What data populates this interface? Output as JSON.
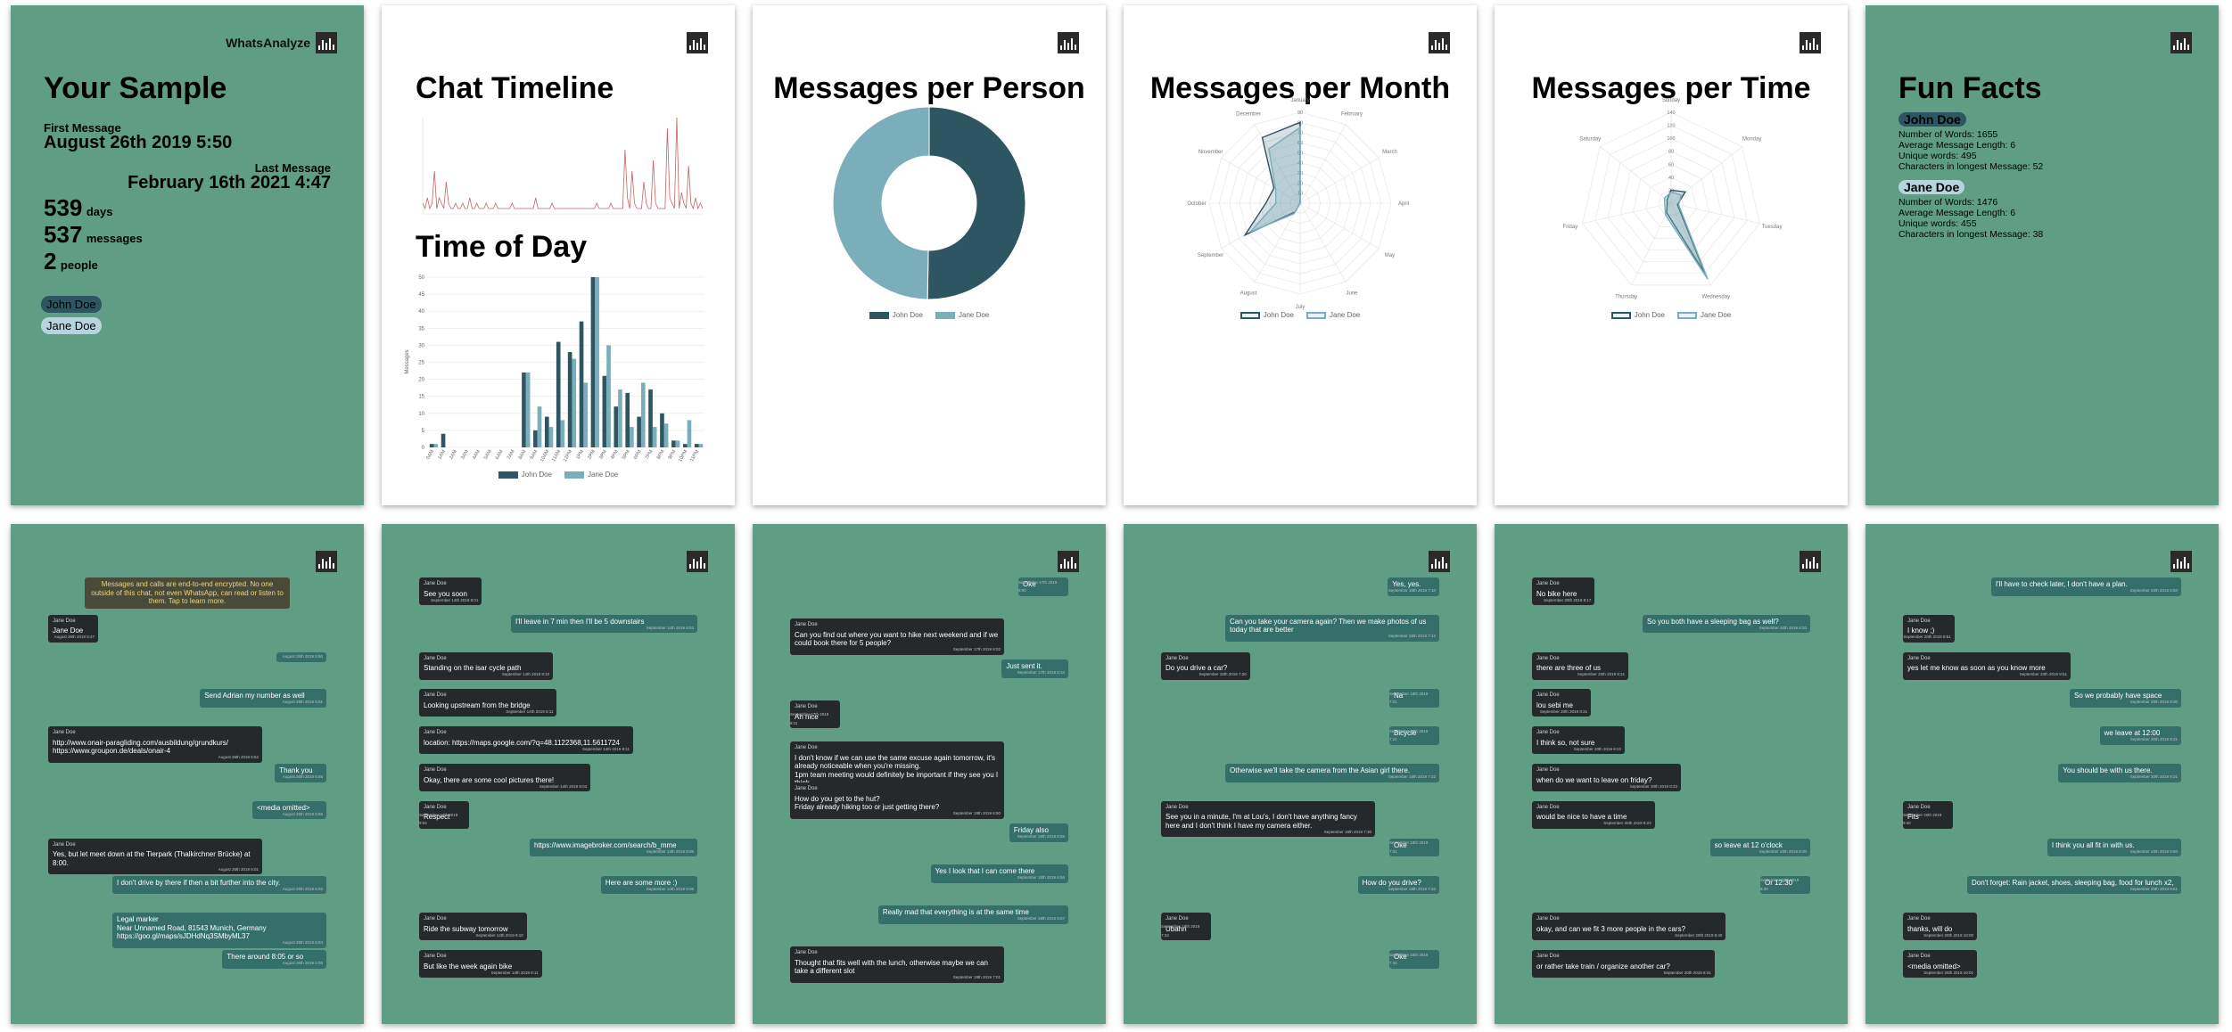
{
  "app": {
    "name": "WhatsAnalyze",
    "logo_icon": "bar-chart-logo-icon"
  },
  "colors": {
    "page_green": "#5f9e84",
    "john": "#2d5562",
    "jane": "#7aaebb",
    "timeline": "#c46464"
  },
  "sample": {
    "title": "Your Sample",
    "first_message_label": "First Message",
    "first_message": "August 26th 2019 5:50",
    "last_message_label": "Last Message",
    "last_message": "February 16th 2021 4:47",
    "days": "539",
    "days_label": "days",
    "messages": "537",
    "messages_label": "messages",
    "people": "2",
    "people_label": "people",
    "participants": [
      "John Doe",
      "Jane Doe"
    ]
  },
  "timeline_page": {
    "title_timeline": "Chat Timeline",
    "title_timeofday": "Time of Day",
    "ylabel": "Messages"
  },
  "person_page": {
    "title": "Messages per Person"
  },
  "month_page": {
    "title": "Messages per Month"
  },
  "time_page": {
    "title": "Messages per Time"
  },
  "funfacts": {
    "title": "Fun Facts",
    "people": [
      {
        "name": "John Doe",
        "lines": [
          "Number of Words: 1655",
          "Average Message Length: 6",
          "Unique words: 495",
          "Characters in longest Message: 52"
        ]
      },
      {
        "name": "Jane Doe",
        "lines": [
          "Number of Words: 1476",
          "Average Message Length: 6",
          "Unique words: 455",
          "Characters in longest Message: 38"
        ]
      }
    ]
  },
  "chart_data": [
    {
      "type": "line",
      "title": "Chat Timeline",
      "series": [
        {
          "values": [
            2,
            1,
            3,
            1,
            2,
            8,
            1,
            3,
            2,
            1,
            6,
            2,
            1,
            1,
            2,
            1,
            1,
            2,
            1,
            1,
            3,
            1,
            1,
            2,
            1,
            1,
            1,
            2,
            1,
            1,
            1,
            2,
            1,
            1,
            1,
            1,
            1,
            1,
            2,
            1,
            1,
            1,
            1,
            1,
            1,
            1,
            1,
            1,
            3,
            1,
            1,
            1,
            1,
            1,
            1,
            2,
            1,
            1,
            1,
            1,
            1,
            1,
            1,
            1,
            1,
            1,
            1,
            1,
            1,
            1,
            1,
            1,
            1,
            1,
            2,
            1,
            1,
            1,
            1,
            1,
            2,
            1,
            1,
            1,
            1,
            1,
            12,
            3,
            1,
            8,
            2,
            1,
            1,
            1,
            6,
            2,
            1,
            1,
            10,
            2,
            1,
            1,
            1,
            1,
            16,
            3,
            2,
            1,
            18,
            1,
            4,
            2,
            1,
            9,
            2,
            1,
            3,
            1,
            2,
            1
          ]
        }
      ]
    },
    {
      "type": "bar",
      "title": "Time of Day",
      "ylabel": "Messages",
      "ylim": [
        0,
        50
      ],
      "categories": [
        "0AM",
        "1AM",
        "2AM",
        "3AM",
        "4AM",
        "5AM",
        "6AM",
        "7AM",
        "8AM",
        "9AM",
        "10AM",
        "11AM",
        "12PM",
        "1PM",
        "2PM",
        "3PM",
        "4PM",
        "5PM",
        "6PM",
        "7PM",
        "8PM",
        "9PM",
        "10PM",
        "11PM"
      ],
      "series": [
        {
          "name": "John Doe",
          "values": [
            1,
            4,
            0,
            0,
            0,
            0,
            0,
            0,
            22,
            5,
            9,
            31,
            28,
            37,
            50,
            21,
            12,
            16,
            9,
            17,
            10,
            2,
            1,
            1
          ]
        },
        {
          "name": "Jane Doe",
          "values": [
            1,
            0,
            0,
            0,
            0,
            0,
            0,
            0,
            22,
            12,
            6,
            8,
            26,
            19,
            50,
            30,
            17,
            6,
            19,
            6,
            7,
            2,
            8,
            1
          ]
        }
      ],
      "legend": "bottom"
    },
    {
      "type": "pie",
      "title": "Messages per Person",
      "categories": [
        "John Doe",
        "Jane Doe"
      ],
      "values": [
        270,
        267
      ],
      "legend": "bottom"
    },
    {
      "type": "radar",
      "title": "Messages per Month",
      "categories": [
        "January",
        "February",
        "March",
        "April",
        "May",
        "June",
        "July",
        "August",
        "September",
        "October",
        "November",
        "December"
      ],
      "rlim": [
        0,
        90
      ],
      "ticks": [
        "10",
        "20",
        "30",
        "40",
        "50",
        "60",
        "70",
        "80",
        "90"
      ],
      "series": [
        {
          "name": "John Doe",
          "values": [
            80,
            0,
            0,
            0,
            0,
            0,
            0,
            10,
            63,
            34,
            30,
            75
          ]
        },
        {
          "name": "Jane Doe",
          "values": [
            75,
            0,
            0,
            0,
            0,
            0,
            0,
            12,
            57,
            24,
            28,
            62
          ]
        }
      ],
      "legend": "bottom"
    },
    {
      "type": "radar",
      "title": "Messages per Time",
      "categories": [
        "Sunday",
        "Monday",
        "Tuesday",
        "Wednesday",
        "Thursday",
        "Friday",
        "Saturday"
      ],
      "rlim": [
        0,
        140
      ],
      "ticks": [
        "20",
        "40",
        "60",
        "80",
        "100",
        "120",
        "140"
      ],
      "series": [
        {
          "name": "John Doe",
          "values": [
            20,
            28,
            10,
            120,
            16,
            6,
            8
          ]
        },
        {
          "name": "Jane Doe",
          "values": [
            17,
            20,
            12,
            130,
            20,
            10,
            13
          ]
        }
      ],
      "legend": "bottom"
    }
  ],
  "chats": [
    {
      "messages": [
        {
          "side": "system",
          "text": "Messages and calls are end-to-end encrypted. No one outside of this chat, not even WhatsApp, can read or listen to them. Tap to learn more."
        },
        {
          "side": "left",
          "sender": "Jane Doe",
          "text": "Jane Doe",
          "time": "August 26th 2019 5:47"
        },
        {
          "side": "right",
          "text": "",
          "time": "August 26th 2019 5:50"
        },
        {
          "side": "right",
          "text": "Send Adrian my number as well",
          "time": "August 26th 2019 5:51"
        },
        {
          "side": "left",
          "sender": "Jane Doe",
          "text": "http://www.onair-paragliding.com/ausbildung/grundkurs/\nhttps://www.groupon.de/deals/onair-4",
          "time": "August 26th 2019 5:52"
        },
        {
          "side": "right",
          "text": "Thank you",
          "time": "August 26th 2019 5:55"
        },
        {
          "side": "right",
          "text": "<media omitted>",
          "time": "August 26th 2019 5:55"
        },
        {
          "side": "left",
          "sender": "Jane Doe",
          "text": "Yes, but let meet down at the Tierpark (Thalkirchner Brücke) at 8:00.",
          "time": "August 26th 2019 6:01"
        },
        {
          "side": "right",
          "text": "I don't drive by there if then a bit further into the city.",
          "time": "August 26th 2019 6:02"
        },
        {
          "side": "right",
          "text": "Legal marker\nNear Unnamed Road, 81543 Munich, Germany\nhttps://goo.gl/maps/sJDHdNq3SMbyML37",
          "time": "August 26th 2019 6:04"
        },
        {
          "side": "right",
          "text": "There around 8:05 or so",
          "time": "August 26th 2019 6:05"
        }
      ]
    },
    {
      "messages": [
        {
          "side": "left",
          "sender": "Jane Doe",
          "text": "See you soon",
          "time": "September 14th 2019 8:01"
        },
        {
          "side": "right",
          "text": "I'll leave in 7 min then I'll be 5 downstairs",
          "time": "September 14th 2019 8:02"
        },
        {
          "side": "left",
          "sender": "Jane Doe",
          "text": "Standing on the isar cycle path",
          "time": "September 14th 2019 8:10"
        },
        {
          "side": "left",
          "sender": "Jane Doe",
          "text": "Looking upstream from the bridge",
          "time": "September 14th 2019 8:11"
        },
        {
          "side": "left",
          "sender": "Jane Doe",
          "text": "location: https://maps.google.com/?q=48.1122368,11.5611724",
          "time": "September 14th 2019 8:11"
        },
        {
          "side": "left",
          "sender": "Jane Doe",
          "text": "Okay, there are some cool pictures there!",
          "time": "September 14th 2019 9:03"
        },
        {
          "side": "left",
          "sender": "Jane Doe",
          "text": "Respect",
          "time": "September 14th 2019 9:04"
        },
        {
          "side": "right",
          "text": "https://www.imagebroker.com/search/b_mme",
          "time": "September 14th 2019 9:06"
        },
        {
          "side": "right",
          "text": "Here are some more :)",
          "time": "September 14th 2019 9:06"
        },
        {
          "side": "left",
          "sender": "Jane Doe",
          "text": "Ride the subway tomorrow",
          "time": "September 14th 2019 9:10"
        },
        {
          "side": "left",
          "sender": "Jane Doe",
          "text": "But like the week again bike",
          "time": "September 14th 2019 9:11"
        }
      ]
    },
    {
      "messages": [
        {
          "side": "right",
          "text": "Oke",
          "time": "September 17th 2019 8:00"
        },
        {
          "side": "left",
          "sender": "Jane Doe",
          "text": "Can you find out where you want to hike next weekend and if we could book there for 5 people?",
          "time": "September 17th 2019 8:02"
        },
        {
          "side": "right",
          "text": "Just sent it.",
          "time": "September 17th 2019 8:10"
        },
        {
          "side": "left",
          "sender": "Jane Doe",
          "text": "Ah nice",
          "time": "September 17th 2019 8:11"
        },
        {
          "side": "left",
          "sender": "Jane Doe",
          "text": "I don't know if we can use the same excuse again tomorrow, it's already noticeable when you're missing.\n1pm team meeting would definitely be important if they see you I think.",
          "time": "September 17th 2019 8:13"
        },
        {
          "side": "left",
          "sender": "Jane Doe",
          "text": "How do you get to the hut?\nFriday already hiking too or just getting there?",
          "time": "September 18th 2019 6:50"
        },
        {
          "side": "right",
          "text": "Friday also",
          "time": "September 18th 2019 6:55"
        },
        {
          "side": "right",
          "text": "Yes I look that I can come there",
          "time": "September 18th 2019 6:56"
        },
        {
          "side": "right",
          "text": "Really mad that everything is at the same time",
          "time": "September 18th 2019 6:57"
        },
        {
          "side": "left",
          "sender": "Jane Doe",
          "text": "Thought that fits well with the lunch, otherwise maybe we can take a different slot",
          "time": "September 18th 2019 7:01"
        }
      ]
    },
    {
      "messages": [
        {
          "side": "right",
          "text": "Yes, yes.",
          "time": "September 18th 2019 7:10"
        },
        {
          "side": "right",
          "text": "Can you take your camera again? Then we make photos of us today that are better",
          "time": "September 18th 2019 7:12"
        },
        {
          "side": "left",
          "sender": "Jane Doe",
          "text": "Do you drive a car?",
          "time": "September 18th 2019 7:20"
        },
        {
          "side": "right",
          "text": "Na",
          "time": "September 18th 2019 7:21"
        },
        {
          "side": "right",
          "text": "Bicycle",
          "time": "September 18th 2019 7:21"
        },
        {
          "side": "right",
          "text": "Otherwise we'll take the camera from the Asian girl there.",
          "time": "September 18th 2019 7:22"
        },
        {
          "side": "left",
          "sender": "Jane Doe",
          "text": "See you in a minute, I'm at Lou's, I don't have anything fancy here and I don't think I have my camera either.",
          "time": "September 18th 2019 7:30"
        },
        {
          "side": "right",
          "text": "Oke",
          "time": "September 18th 2019 7:31"
        },
        {
          "side": "right",
          "text": "How do you drive?",
          "time": "September 18th 2019 7:32"
        },
        {
          "side": "left",
          "sender": "Jane Doe",
          "text": "Ubahn",
          "time": "September 18th 2019 7:33"
        },
        {
          "side": "right",
          "text": "Oke",
          "time": "September 18th 2019 7:34"
        }
      ]
    },
    {
      "messages": [
        {
          "side": "left",
          "sender": "Jane Doe",
          "text": "No bike here",
          "time": "September 20th 2019 8:17"
        },
        {
          "side": "right",
          "text": "So you both have a sleeping bag as well?",
          "time": "September 20th 2019 8:20"
        },
        {
          "side": "left",
          "sender": "Jane Doe",
          "text": "there are three of us",
          "time": "September 20th 2019 8:21"
        },
        {
          "side": "left",
          "sender": "Jane Doe",
          "text": "lou sebi me",
          "time": "September 20th 2019 8:21"
        },
        {
          "side": "left",
          "sender": "Jane Doe",
          "text": "I think so, not sure",
          "time": "September 20th 2019 8:22"
        },
        {
          "side": "left",
          "sender": "Jane Doe",
          "text": "when do we want to leave on friday?",
          "time": "September 20th 2019 8:23"
        },
        {
          "side": "left",
          "sender": "Jane Doe",
          "text": "would be nice to have a time",
          "time": "September 20th 2019 8:23"
        },
        {
          "side": "right",
          "text": "so leave at 12 o'clock",
          "time": "September 20th 2019 8:30"
        },
        {
          "side": "right",
          "text": "Or 12:30",
          "time": "September 20th 2019 8:30"
        },
        {
          "side": "left",
          "sender": "Jane Doe",
          "text": "okay, and can we fit 3 more people in the cars?",
          "time": "September 20th 2019 8:40"
        },
        {
          "side": "left",
          "sender": "Jane Doe",
          "text": "or rather take train / organize another car?",
          "time": "September 20th 2019 8:41"
        }
      ]
    },
    {
      "messages": [
        {
          "side": "right",
          "text": "I'll have to check later, I don't have a plan.",
          "time": "September 20th 2019 8:50"
        },
        {
          "side": "left",
          "sender": "Jane Doe",
          "text": "I know ;)",
          "time": "September 20th 2019 8:51"
        },
        {
          "side": "left",
          "sender": "Jane Doe",
          "text": "yes let me know as soon as you know more",
          "time": "September 20th 2019 8:51"
        },
        {
          "side": "right",
          "text": "So we probably have space",
          "time": "September 20th 2019 9:30"
        },
        {
          "side": "right",
          "text": "we leave at 12:00",
          "time": "September 20th 2019 9:31"
        },
        {
          "side": "right",
          "text": "You should be with us there.",
          "time": "September 20th 2019 9:31"
        },
        {
          "side": "left",
          "sender": "Jane Doe",
          "text": "Fits",
          "time": "September 20th 2019 9:40"
        },
        {
          "side": "right",
          "text": "I think you all fit in with us.",
          "time": "September 20th 2019 9:50"
        },
        {
          "side": "right",
          "text": "Don't forget: Rain jacket, shoes, sleeping bag, food for lunch x2,",
          "time": "September 20th 2019 9:51"
        },
        {
          "side": "left",
          "sender": "Jane Doe",
          "text": "thanks, will do",
          "time": "September 20th 2019 10:00"
        },
        {
          "side": "left",
          "sender": "Jane Doe",
          "text": "<media omitted>",
          "time": "September 20th 2019 10:01"
        }
      ]
    }
  ]
}
